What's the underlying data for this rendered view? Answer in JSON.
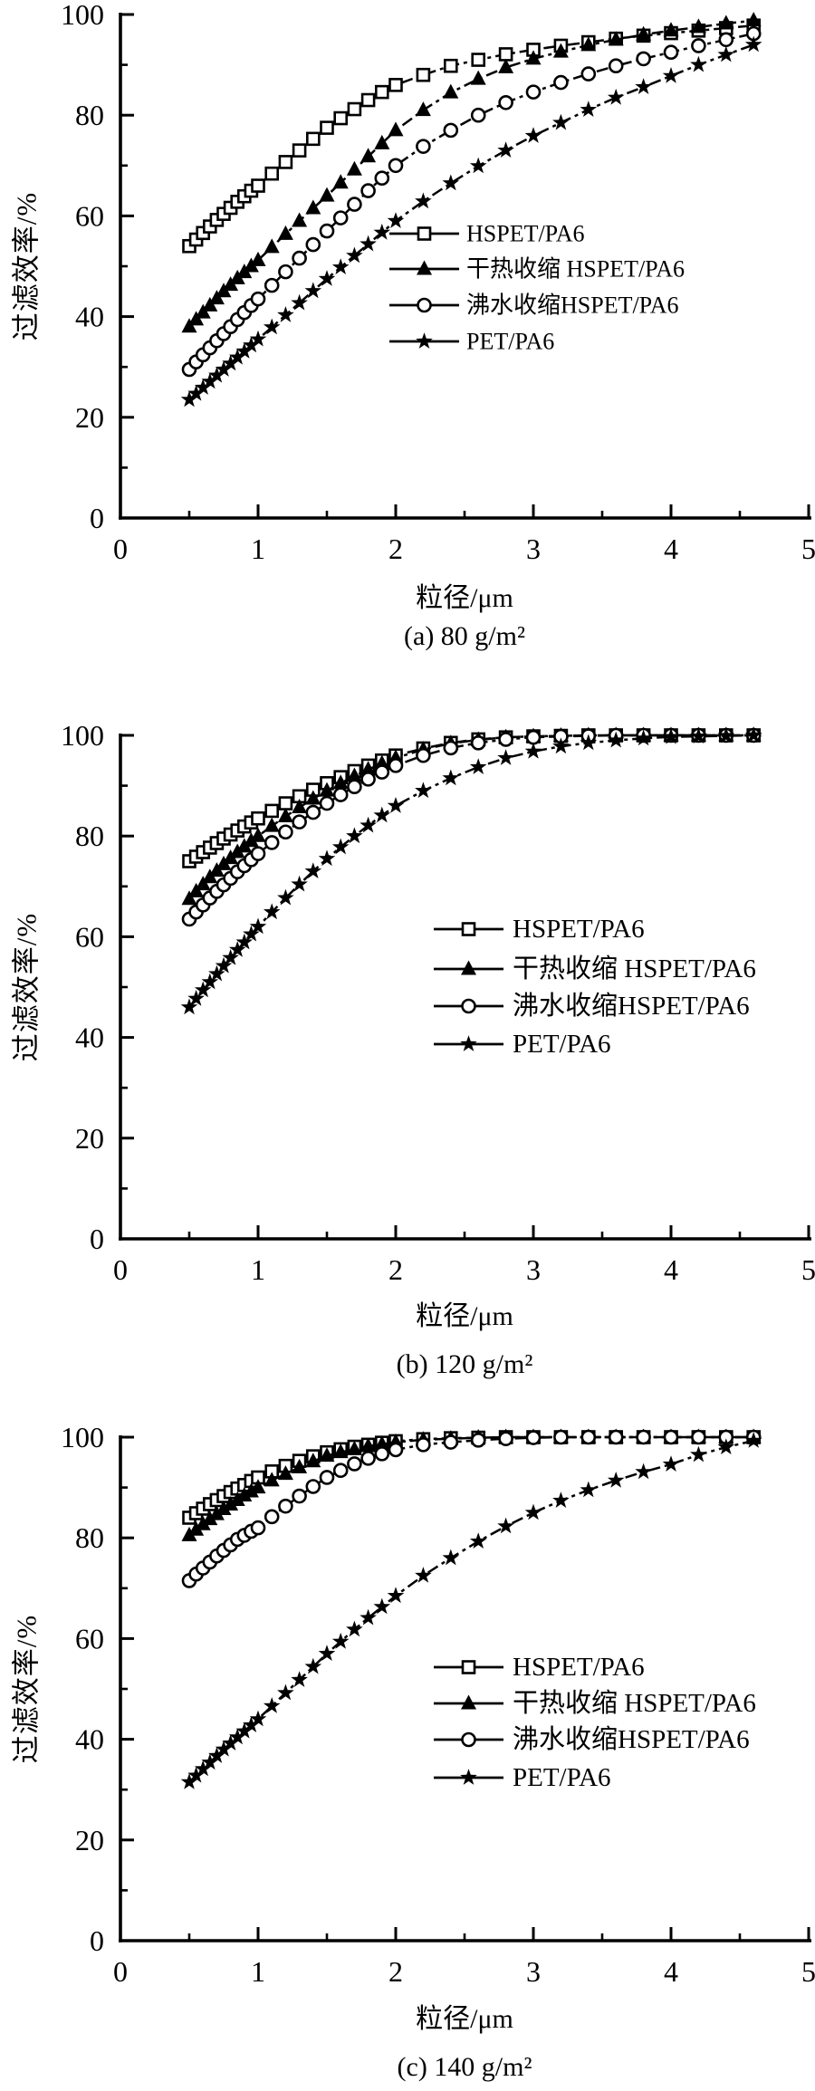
{
  "page": {
    "background": "#ffffff",
    "ink": "#000000"
  },
  "chart_data": [
    {
      "type": "line",
      "caption": "(a) 80 g/m²",
      "xlabel": "粒径/μm",
      "ylabel": "过滤效率/%",
      "xlim": [
        0,
        5
      ],
      "ylim": [
        0,
        100
      ],
      "x_ticks": [
        0,
        1,
        2,
        3,
        4,
        5
      ],
      "y_ticks": [
        0,
        20,
        40,
        60,
        80,
        100
      ],
      "x_minor_step": 0.5,
      "y_minor_step": 10,
      "grid": false,
      "legend_position": "inside-right",
      "x": [
        0.5,
        0.55,
        0.6,
        0.65,
        0.7,
        0.75,
        0.8,
        0.85,
        0.9,
        0.95,
        1.0,
        1.1,
        1.2,
        1.3,
        1.4,
        1.5,
        1.6,
        1.7,
        1.8,
        1.9,
        2.0,
        2.2,
        2.4,
        2.6,
        2.8,
        3.0,
        3.2,
        3.4,
        3.6,
        3.8,
        4.0,
        4.2,
        4.4,
        4.6
      ],
      "series": [
        {
          "name": "HSPET/PA6",
          "marker": "open-square",
          "values": [
            54,
            55.3,
            56.6,
            57.9,
            59.2,
            60.4,
            61.6,
            62.8,
            63.9,
            65,
            66,
            68.4,
            70.7,
            73,
            75.3,
            77.5,
            79.4,
            81.2,
            83,
            84.6,
            86,
            88,
            89.8,
            91,
            92.1,
            93,
            93.8,
            94.5,
            95.2,
            95.8,
            96.3,
            96.8,
            97.3,
            97.8
          ]
        },
        {
          "name": "干热收缩 HSPET/PA6",
          "marker": "filled-triangle",
          "values": [
            38,
            39.4,
            40.8,
            42.2,
            43.6,
            45,
            46.3,
            47.6,
            48.8,
            50,
            51.2,
            53.8,
            56.4,
            59,
            61.5,
            64,
            66.6,
            69.2,
            71.8,
            74.4,
            77,
            81,
            84.5,
            87.2,
            89.5,
            91.2,
            92.6,
            93.9,
            95,
            96,
            96.8,
            97.5,
            98.2,
            98.8
          ]
        },
        {
          "name": "沸水收缩HSPET/PA6",
          "marker": "open-circle",
          "values": [
            29.5,
            31,
            32.4,
            33.8,
            35.2,
            36.6,
            38,
            39.4,
            40.8,
            42.2,
            43.5,
            46.2,
            48.9,
            51.6,
            54.3,
            57,
            59.6,
            62.3,
            65,
            67.5,
            70,
            73.8,
            77,
            80,
            82.5,
            84.6,
            86.5,
            88.2,
            89.8,
            91.2,
            92.5,
            93.8,
            95,
            96.2
          ]
        },
        {
          "name": "PET/PA6",
          "marker": "filled-star",
          "values": [
            23.5,
            24.7,
            25.9,
            27.1,
            28.3,
            29.5,
            30.7,
            31.9,
            33.1,
            34.3,
            35.5,
            37.9,
            40.3,
            42.7,
            45.1,
            47.5,
            49.8,
            52.1,
            54.4,
            56.7,
            59,
            62.9,
            66.5,
            69.9,
            73,
            75.9,
            78.5,
            81.1,
            83.5,
            85.6,
            87.8,
            90,
            92,
            94
          ]
        }
      ]
    },
    {
      "type": "line",
      "caption": "(b) 120 g/m²",
      "xlabel": "粒径/μm",
      "ylabel": "过滤效率/%",
      "xlim": [
        0,
        5
      ],
      "ylim": [
        0,
        100
      ],
      "x_ticks": [
        0,
        1,
        2,
        3,
        4,
        5
      ],
      "y_ticks": [
        0,
        20,
        40,
        60,
        80,
        100
      ],
      "x_minor_step": 0.5,
      "y_minor_step": 10,
      "grid": false,
      "legend_position": "inside-right",
      "x": [
        0.5,
        0.55,
        0.6,
        0.65,
        0.7,
        0.75,
        0.8,
        0.85,
        0.9,
        0.95,
        1.0,
        1.1,
        1.2,
        1.3,
        1.4,
        1.5,
        1.6,
        1.7,
        1.8,
        1.9,
        2.0,
        2.2,
        2.4,
        2.6,
        2.8,
        3.0,
        3.2,
        3.4,
        3.6,
        3.8,
        4.0,
        4.2,
        4.4,
        4.6
      ],
      "series": [
        {
          "name": "HSPET/PA6",
          "marker": "open-square",
          "values": [
            75,
            75.9,
            76.8,
            77.7,
            78.6,
            79.5,
            80.3,
            81.1,
            81.9,
            82.7,
            83.5,
            85,
            86.5,
            87.9,
            89.2,
            90.5,
            91.7,
            92.9,
            94,
            95,
            96,
            97.4,
            98.5,
            99.2,
            99.6,
            99.8,
            99.9,
            100,
            100,
            100,
            100,
            100,
            100,
            100
          ]
        },
        {
          "name": "干热收缩 HSPET/PA6",
          "marker": "filled-triangle",
          "values": [
            67.5,
            69,
            70.4,
            71.8,
            73.1,
            74.4,
            75.6,
            76.8,
            77.9,
            79,
            80,
            82,
            83.9,
            85.7,
            87.4,
            89,
            90.5,
            91.9,
            93.2,
            94.4,
            95.5,
            97.2,
            98.4,
            99.1,
            99.6,
            99.8,
            99.9,
            100,
            100,
            100,
            100,
            100,
            100,
            100
          ]
        },
        {
          "name": "沸水收缩HSPET/PA6",
          "marker": "open-circle",
          "values": [
            63.5,
            64.9,
            66.3,
            67.7,
            69,
            70.3,
            71.6,
            72.9,
            74.1,
            75.3,
            76.5,
            78.7,
            80.8,
            82.8,
            84.7,
            86.5,
            88.2,
            89.8,
            91.3,
            92.7,
            94,
            96,
            97.5,
            98.5,
            99.2,
            99.6,
            99.8,
            99.9,
            100,
            100,
            100,
            100,
            100,
            100
          ]
        },
        {
          "name": "PET/PA6",
          "marker": "filled-star",
          "values": [
            46,
            47.7,
            49.4,
            51,
            52.6,
            54.2,
            55.8,
            57.4,
            58.9,
            60.5,
            62,
            64.9,
            67.7,
            70.4,
            73,
            75.5,
            77.8,
            80,
            82.1,
            84.1,
            86,
            89,
            91.5,
            93.7,
            95.5,
            96.8,
            97.8,
            98.5,
            99,
            99.4,
            99.7,
            99.8,
            99.9,
            100
          ]
        }
      ]
    },
    {
      "type": "line",
      "caption": "(c) 140 g/m²",
      "xlabel": "粒径/μm",
      "ylabel": "过滤效率/%",
      "xlim": [
        0,
        5
      ],
      "ylim": [
        0,
        100
      ],
      "x_ticks": [
        0,
        1,
        2,
        3,
        4,
        5
      ],
      "y_ticks": [
        0,
        20,
        40,
        60,
        80,
        100
      ],
      "x_minor_step": 0.5,
      "y_minor_step": 10,
      "grid": false,
      "legend_position": "inside-right",
      "x": [
        0.5,
        0.55,
        0.6,
        0.65,
        0.7,
        0.75,
        0.8,
        0.85,
        0.9,
        0.95,
        1.0,
        1.1,
        1.2,
        1.3,
        1.4,
        1.5,
        1.6,
        1.7,
        1.8,
        1.9,
        2.0,
        2.2,
        2.4,
        2.6,
        2.8,
        3.0,
        3.2,
        3.4,
        3.6,
        3.8,
        4.0,
        4.2,
        4.4,
        4.6
      ],
      "series": [
        {
          "name": "HSPET/PA6",
          "marker": "open-square",
          "values": [
            84,
            84.9,
            85.8,
            86.7,
            87.5,
            88.3,
            89.1,
            89.8,
            90.5,
            91.3,
            92,
            93.2,
            94.3,
            95.3,
            96.2,
            97,
            97.6,
            98.1,
            98.5,
            98.9,
            99.2,
            99.6,
            99.8,
            99.9,
            100,
            100,
            100,
            100,
            100,
            100,
            100,
            100,
            100,
            100
          ]
        },
        {
          "name": "干热收缩 HSPET/PA6",
          "marker": "filled-triangle",
          "values": [
            80.5,
            81.6,
            82.7,
            83.7,
            84.7,
            85.7,
            86.6,
            87.5,
            88.4,
            89.2,
            90,
            91.4,
            92.7,
            94,
            95.2,
            96.3,
            97,
            97.6,
            98.2,
            98.6,
            99,
            99.5,
            99.7,
            99.9,
            100,
            100,
            100,
            100,
            100,
            100,
            100,
            100,
            100,
            100
          ]
        },
        {
          "name": "沸水收缩HSPET/PA6",
          "marker": "open-circle",
          "values": [
            71.5,
            72.8,
            74,
            75.2,
            76.4,
            77.5,
            78.6,
            79.7,
            80.5,
            81.3,
            82,
            84.2,
            86.3,
            88.3,
            90.2,
            92,
            93.4,
            94.7,
            95.8,
            96.7,
            97.5,
            98.5,
            99,
            99.4,
            99.7,
            99.9,
            100,
            100,
            100,
            100,
            100,
            100,
            100,
            100
          ]
        },
        {
          "name": "PET/PA6",
          "marker": "filled-star",
          "values": [
            31.5,
            32.8,
            34.1,
            35.4,
            36.7,
            38,
            39.2,
            40.4,
            41.6,
            42.8,
            44,
            46.6,
            49.2,
            51.8,
            54.4,
            57,
            59.4,
            61.8,
            64.1,
            66.3,
            68.5,
            72.5,
            76,
            79.3,
            82.3,
            85,
            87.4,
            89.5,
            91.4,
            93.1,
            94.6,
            96.5,
            98,
            99.3
          ]
        }
      ]
    }
  ]
}
